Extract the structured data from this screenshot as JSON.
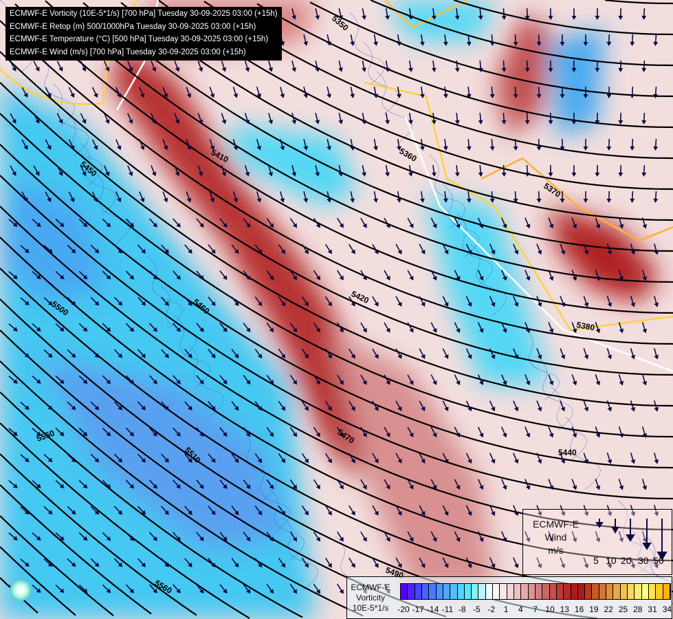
{
  "header": {
    "lines": [
      "ECMWF-E Vorticity (10E-5*1/s) [700 hPa] Tuesday 30-09-2025 03:00 (+15h)",
      "ECMWF-E Retop (m) 500/1000hPa Tuesday 30-09-2025 03:00 (+15h)",
      "ECMWF-E Temperature (°C) [500 hPa] Tuesday 30-09-2025 03:00 (+15h)",
      "ECMWF-E Wind (m/s) [700 hPa] Tuesday 30-09-2025 03:00 (+15h)"
    ]
  },
  "contour_labels": [
    "5350",
    "5360",
    "5370",
    "5380",
    "5410",
    "5420",
    "5440",
    "5450",
    "5460",
    "5470",
    "5490",
    "5500",
    "5510",
    "5550",
    "5560"
  ],
  "wind_legend": {
    "title": [
      "ECMWF-E",
      "Wind",
      "m/s"
    ],
    "values": [
      "5",
      "10",
      "20",
      "30",
      "50"
    ]
  },
  "vorticity_legend": {
    "title": [
      "ECMWF-E",
      "Vorticity",
      "10E-5*1/s"
    ],
    "ticks": [
      "-20",
      "-17",
      "-14",
      "-11",
      "-8",
      "-5",
      "-2",
      "1",
      "4",
      "7",
      "10",
      "13",
      "16",
      "19",
      "22",
      "25",
      "28",
      "31",
      "34"
    ],
    "color_stops": [
      "#5500ff",
      "#4466ff",
      "#55aaff",
      "#55eeff",
      "#ffffff",
      "#f0d0d0",
      "#d88888",
      "#c04040",
      "#aa1010",
      "#d07030",
      "#f0c050",
      "#ffff80",
      "#ffb000"
    ]
  },
  "colors": {
    "positive_vorticity": "#b02020",
    "negative_vorticity": "#40b8f0",
    "contour": "#000000",
    "wind_arrow": "#0a0a40",
    "temperature_isotherm": "#ffc040"
  }
}
